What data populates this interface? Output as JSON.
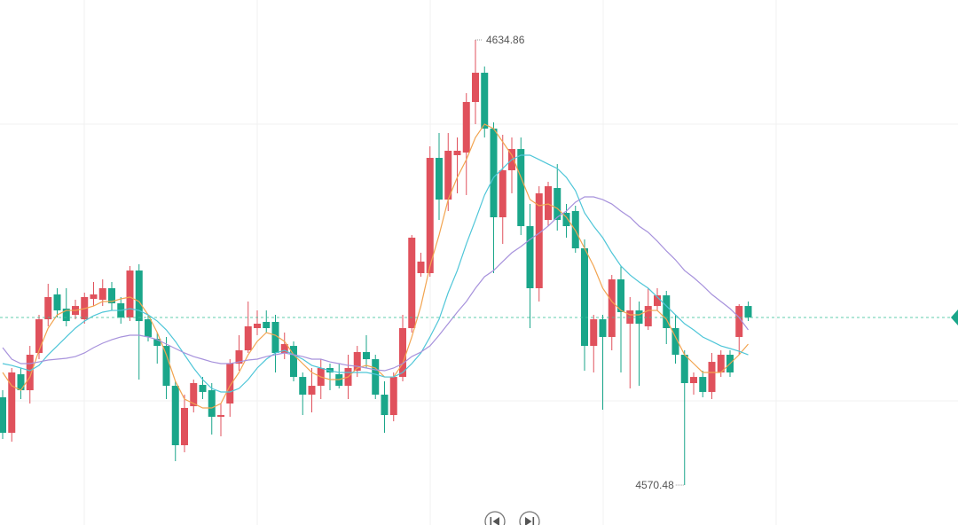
{
  "chart_data": {
    "type": "candlestick",
    "ylim": [
      4564.71,
      4640.63
    ],
    "up_color": "#e0515c",
    "down_color": "#1aa68a",
    "price_line_color": "#3cc39b",
    "open": [
      4583.18,
      4578.04,
      4586.51,
      4584.2,
      4589.59,
      4594.46,
      4598.05,
      4596.0,
      4595.1,
      4594.46,
      4597.41,
      4597.28,
      4598.95,
      4596.77,
      4594.72,
      4601.51,
      4594.46,
      4591.64,
      4590.61,
      4584.84,
      4576.25,
      4581.89,
      4584.97,
      4584.2,
      4580.36,
      4582.28,
      4588.05,
      4589.97,
      4593.18,
      4594.08,
      4594.08,
      4589.59,
      4590.61,
      4586.12,
      4583.56,
      4584.84,
      4587.41,
      4586.51,
      4584.84,
      4587.02,
      4589.72,
      4588.69,
      4583.56,
      4580.61,
      4586.12,
      4593.18,
      4601.13,
      4601.13,
      4617.8,
      4611.77,
      4618.19,
      4618.57,
      4625.88,
      4630.11,
      4622.03,
      4609.21,
      4616.01,
      4619.08,
      4607.93,
      4598.95,
      4608.82,
      4613.44,
      4609.85,
      4610.11,
      4604.72,
      4590.61,
      4594.46,
      4591.9,
      4600.23,
      4593.82,
      4595.74,
      4593.44,
      4596.38,
      4597.92,
      4593.18,
      4589.33,
      4585.23,
      4586.12,
      4583.95,
      4586.77,
      4589.33,
      4591.9,
      4596.38
    ],
    "high": [
      4584.2,
      4587.41,
      4587.41,
      4590.61,
      4595.1,
      4599.59,
      4598.95,
      4598.95,
      4597.28,
      4598.31,
      4599.85,
      4600.23,
      4599.85,
      4597.67,
      4602.16,
      4602.41,
      4595.1,
      4592.54,
      4591.9,
      4585.49,
      4583.56,
      4585.74,
      4586.12,
      4585.23,
      4582.28,
      4588.69,
      4592.15,
      4597.03,
      4595.74,
      4595.74,
      4595.1,
      4592.54,
      4591.26,
      4586.77,
      4587.41,
      4588.69,
      4588.05,
      4588.05,
      4589.33,
      4590.61,
      4592.15,
      4589.33,
      4585.49,
      4586.77,
      4595.1,
      4606.64,
      4604.08,
      4619.47,
      4621.39,
      4621.39,
      4620.75,
      4627.16,
      4634.86,
      4631.01,
      4622.93,
      4621.14,
      4620.75,
      4620.75,
      4611.13,
      4613.7,
      4614.34,
      4616.9,
      4611.13,
      4610.88,
      4606.0,
      4595.1,
      4595.1,
      4600.87,
      4602.16,
      4597.67,
      4597.03,
      4598.95,
      4598.95,
      4598.57,
      4595.1,
      4589.97,
      4586.77,
      4587.02,
      4589.59,
      4589.97,
      4589.97,
      4596.64,
      4597.03
    ],
    "low": [
      4577.15,
      4576.76,
      4582.92,
      4582.28,
      4588.69,
      4593.44,
      4594.72,
      4593.44,
      4594.46,
      4593.82,
      4596.38,
      4596.38,
      4595.74,
      4593.82,
      4594.2,
      4585.74,
      4591.26,
      4588.05,
      4582.92,
      4573.94,
      4575.22,
      4580.99,
      4582.92,
      4577.79,
      4577.53,
      4580.36,
      4587.02,
      4589.59,
      4592.15,
      4592.54,
      4586.77,
      4588.69,
      4585.49,
      4580.61,
      4580.99,
      4582.92,
      4584.2,
      4584.46,
      4582.92,
      4586.12,
      4587.41,
      4582.92,
      4578.04,
      4579.71,
      4585.49,
      4592.54,
      4600.62,
      4600.62,
      4608.82,
      4610.11,
      4612.67,
      4612.42,
      4622.68,
      4620.75,
      4601.13,
      4605.36,
      4612.67,
      4606.64,
      4593.18,
      4597.03,
      4607.93,
      4607.28,
      4606.26,
      4604.08,
      4587.02,
      4586.77,
      4581.38,
      4589.97,
      4586.77,
      4584.46,
      4584.84,
      4592.92,
      4595.74,
      4590.87,
      4588.05,
      4570.48,
      4583.56,
      4583.18,
      4582.92,
      4586.12,
      4586.12,
      4589.33,
      4594.2
    ],
    "close": [
      4578.04,
      4586.77,
      4584.2,
      4589.33,
      4594.46,
      4597.67,
      4595.74,
      4594.2,
      4596.38,
      4597.67,
      4598.05,
      4598.95,
      4596.77,
      4594.72,
      4601.51,
      4594.2,
      4591.9,
      4590.61,
      4584.84,
      4576.25,
      4581.64,
      4585.23,
      4583.95,
      4580.36,
      4580.61,
      4588.05,
      4589.97,
      4593.44,
      4593.82,
      4593.18,
      4589.59,
      4590.87,
      4586.12,
      4583.56,
      4584.84,
      4587.41,
      4586.77,
      4584.84,
      4587.41,
      4589.72,
      4588.69,
      4583.56,
      4580.61,
      4586.12,
      4593.18,
      4606.26,
      4602.8,
      4617.8,
      4611.77,
      4618.83,
      4618.83,
      4625.88,
      4630.11,
      4622.03,
      4609.21,
      4616.01,
      4619.08,
      4607.93,
      4598.95,
      4612.67,
      4613.7,
      4608.82,
      4607.93,
      4604.72,
      4590.61,
      4594.46,
      4591.9,
      4600.23,
      4595.49,
      4595.74,
      4593.82,
      4596.38,
      4597.92,
      4593.18,
      4589.33,
      4585.23,
      4586.12,
      4583.95,
      4588.3,
      4589.33,
      4586.77,
      4596.38,
      4594.72
    ],
    "lines": [
      {
        "color": "#f2a450",
        "values": [
          4586.77,
          4584.84,
          4584.2,
          4586.12,
          4589.97,
          4593.18,
          4595.1,
          4595.74,
          4595.74,
          4596.0,
          4596.38,
          4597.03,
          4597.03,
          4597.41,
          4597.67,
          4597.03,
          4595.1,
          4592.54,
          4589.33,
          4585.49,
          4582.92,
          4582.28,
          4581.64,
          4581.64,
          4582.28,
          4584.84,
          4586.77,
          4589.33,
          4591.26,
          4592.54,
          4592.15,
          4591.26,
          4589.33,
          4588.05,
          4586.77,
          4586.12,
          4585.74,
          4585.74,
          4586.12,
          4587.41,
          4587.79,
          4587.41,
          4586.12,
          4586.12,
          4588.05,
          4591.9,
          4596.38,
          4602.16,
          4606.64,
          4611.77,
          4614.98,
          4617.55,
          4620.75,
          4622.68,
          4622.03,
          4620.11,
          4618.19,
          4614.98,
          4611.77,
          4610.88,
          4611.13,
          4610.49,
          4609.21,
          4607.28,
          4604.72,
          4602.16,
          4598.95,
          4597.03,
          4595.74,
          4595.1,
          4595.1,
          4595.74,
          4595.74,
          4594.46,
          4591.9,
          4589.33,
          4588.05,
          4586.77,
          4586.77,
          4586.77,
          4588.05,
          4589.33,
          4590.87
        ]
      },
      {
        "color": "#4fc6d8",
        "values": [
          4588.05,
          4587.79,
          4587.41,
          4587.02,
          4587.79,
          4589.33,
          4590.61,
          4591.9,
          4593.18,
          4594.2,
          4594.97,
          4595.49,
          4595.74,
          4595.74,
          4596.0,
          4595.74,
          4595.1,
          4594.2,
          4592.92,
          4591.26,
          4589.33,
          4587.41,
          4585.74,
          4584.46,
          4583.95,
          4583.95,
          4584.46,
          4585.74,
          4587.41,
          4588.69,
          4589.59,
          4589.97,
          4589.33,
          4588.69,
          4587.79,
          4587.41,
          4587.02,
          4586.77,
          4586.77,
          4586.77,
          4586.77,
          4586.51,
          4586.12,
          4586.12,
          4586.77,
          4588.05,
          4589.59,
          4591.9,
          4594.46,
          4598.31,
          4601.51,
          4605.36,
          4608.82,
          4612.42,
          4614.98,
          4616.27,
          4617.55,
          4618.19,
          4618.19,
          4617.55,
          4616.9,
          4616.27,
          4614.98,
          4613.06,
          4609.85,
          4607.93,
          4606.26,
          4604.08,
          4602.16,
          4600.87,
          4599.85,
          4598.95,
          4597.67,
          4596.38,
          4595.1,
          4593.82,
          4592.92,
          4591.9,
          4591.26,
          4590.61,
          4590.23,
          4589.84,
          4589.33
        ]
      },
      {
        "color": "#a792dc",
        "values": [
          4590.36,
          4588.69,
          4588.05,
          4588.05,
          4588.3,
          4588.56,
          4588.69,
          4588.82,
          4589.07,
          4589.59,
          4590.36,
          4591.0,
          4591.51,
          4591.9,
          4592.15,
          4592.15,
          4591.9,
          4591.51,
          4590.87,
          4590.23,
          4589.59,
          4589.07,
          4588.69,
          4588.3,
          4588.05,
          4588.05,
          4588.3,
          4588.56,
          4588.69,
          4589.07,
          4589.33,
          4589.59,
          4589.33,
          4589.07,
          4588.69,
          4588.69,
          4588.3,
          4588.05,
          4587.79,
          4587.66,
          4587.41,
          4587.15,
          4587.02,
          4587.41,
          4588.05,
          4589.07,
          4589.72,
          4590.61,
          4592.15,
          4593.82,
          4595.49,
          4597.03,
          4598.95,
          4600.62,
          4601.51,
          4602.8,
          4604.08,
          4604.98,
          4606.0,
          4606.9,
          4607.93,
          4609.21,
          4610.11,
          4611.39,
          4612.16,
          4612.16,
          4611.77,
          4611.13,
          4610.11,
          4609.21,
          4607.93,
          4607.03,
          4605.75,
          4604.34,
          4603.05,
          4601.51,
          4600.49,
          4599.33,
          4598.05,
          4597.03,
          4596.0,
          4594.72,
          4592.92
        ]
      }
    ],
    "high_label": 4634.86,
    "low_label": 4570.48
  }
}
